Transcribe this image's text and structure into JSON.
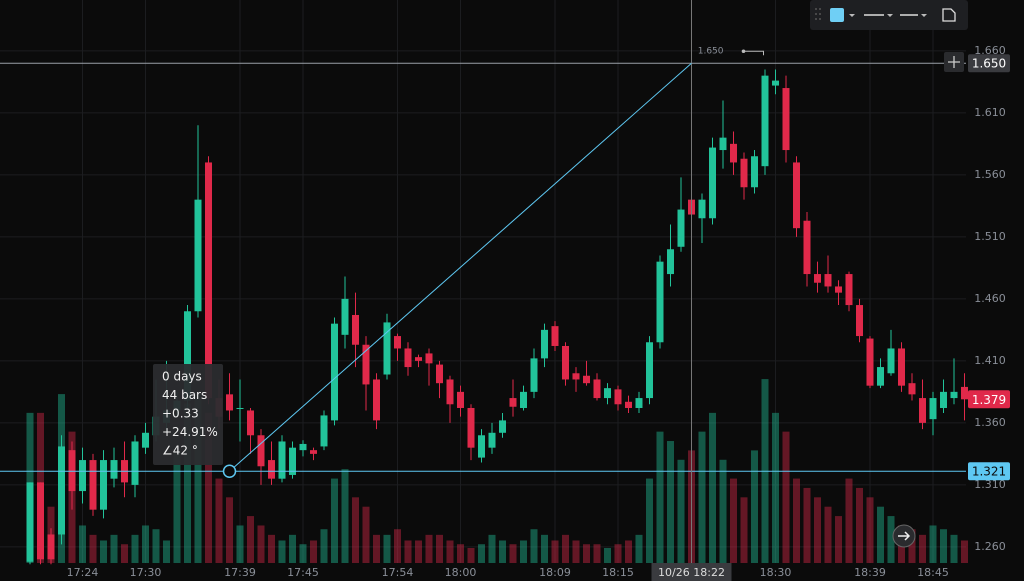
{
  "chart_data": {
    "type": "candlestick",
    "categories": [
      null,
      null,
      null,
      null,
      null,
      "17:24",
      null,
      null,
      null,
      null,
      null,
      "17:30",
      null,
      null,
      null,
      null,
      null,
      null,
      null,
      null,
      "17:39",
      null,
      null,
      null,
      null,
      null,
      "17:45",
      null,
      null,
      null,
      null,
      null,
      null,
      null,
      null,
      "17:54",
      null,
      null,
      null,
      null,
      null,
      "18:00",
      null,
      null,
      null,
      null,
      null,
      null,
      null,
      null,
      "18:09",
      null,
      null,
      null,
      null,
      null,
      "18:15",
      null,
      null,
      null,
      null,
      null,
      null,
      "10/26 18:22",
      null,
      null,
      null,
      null,
      null,
      null,
      null,
      "18:30",
      null,
      null,
      null,
      null,
      null,
      null,
      null,
      null,
      "18:39",
      null,
      null,
      null,
      null,
      null,
      "18:45",
      null,
      null,
      null
    ],
    "open": [
      1.248,
      1.312,
      1.27,
      1.27,
      1.338,
      1.305,
      1.33,
      1.29,
      1.315,
      1.33,
      1.31,
      1.34,
      1.35,
      1.36,
      1.37,
      1.378,
      1.45,
      1.57,
      1.38,
      1.383,
      1.372,
      1.37,
      1.35,
      1.33,
      1.315,
      1.318,
      1.338,
      1.338,
      1.341,
      1.362,
      1.431,
      1.447,
      1.423,
      1.395,
      1.399,
      1.43,
      1.42,
      1.413,
      1.416,
      1.407,
      1.395,
      1.385,
      1.372,
      1.332,
      1.34,
      1.352,
      1.38,
      1.372,
      1.385,
      1.412,
      1.438,
      1.422,
      1.4,
      1.398,
      1.395,
      1.38,
      1.387,
      1.377,
      1.372,
      1.38,
      1.425,
      1.48,
      1.502,
      1.54,
      1.525,
      1.525,
      1.58,
      1.585,
      1.573,
      1.55,
      1.567,
      1.632,
      1.63,
      1.57,
      1.523,
      1.48,
      1.48,
      1.47,
      1.48,
      1.455,
      1.428,
      1.39,
      1.4,
      1.42,
      1.392,
      1.38,
      1.363,
      1.372,
      1.38,
      1.389
    ],
    "high": [
      1.312,
      1.312,
      1.275,
      1.35,
      1.345,
      1.34,
      1.335,
      1.338,
      1.34,
      1.345,
      1.35,
      1.36,
      1.395,
      1.41,
      1.385,
      1.455,
      1.6,
      1.575,
      1.395,
      1.4,
      1.395,
      1.372,
      1.355,
      1.345,
      1.35,
      1.345,
      1.346,
      1.34,
      1.37,
      1.445,
      1.478,
      1.465,
      1.43,
      1.4,
      1.448,
      1.432,
      1.425,
      1.415,
      1.42,
      1.41,
      1.398,
      1.39,
      1.375,
      1.355,
      1.36,
      1.368,
      1.395,
      1.39,
      1.42,
      1.44,
      1.442,
      1.425,
      1.405,
      1.41,
      1.4,
      1.392,
      1.39,
      1.382,
      1.385,
      1.43,
      1.495,
      1.52,
      1.558,
      1.55,
      1.545,
      1.59,
      1.62,
      1.595,
      1.578,
      1.58,
      1.645,
      1.645,
      1.64,
      1.575,
      1.53,
      1.49,
      1.495,
      1.475,
      1.482,
      1.46,
      1.43,
      1.412,
      1.435,
      1.425,
      1.4,
      1.395,
      1.385,
      1.395,
      1.412,
      1.4
    ],
    "low": [
      1.246,
      1.246,
      1.246,
      1.262,
      1.29,
      1.295,
      1.285,
      1.283,
      1.308,
      1.3,
      1.3,
      1.335,
      1.345,
      1.352,
      1.365,
      1.372,
      1.445,
      1.375,
      1.355,
      1.362,
      1.345,
      1.335,
      1.31,
      1.31,
      1.312,
      1.315,
      1.333,
      1.33,
      1.338,
      1.358,
      1.42,
      1.405,
      1.37,
      1.355,
      1.395,
      1.41,
      1.398,
      1.405,
      1.39,
      1.38,
      1.36,
      1.365,
      1.33,
      1.328,
      1.335,
      1.348,
      1.365,
      1.37,
      1.38,
      1.405,
      1.418,
      1.39,
      1.385,
      1.39,
      1.378,
      1.375,
      1.37,
      1.368,
      1.368,
      1.375,
      1.42,
      1.47,
      1.498,
      1.52,
      1.505,
      1.52,
      1.565,
      1.56,
      1.54,
      1.545,
      1.56,
      1.625,
      1.57,
      1.51,
      1.47,
      1.465,
      1.465,
      1.455,
      1.45,
      1.425,
      1.388,
      1.388,
      1.398,
      1.385,
      1.378,
      1.355,
      1.35,
      1.368,
      1.375,
      1.362
    ],
    "close": [
      1.312,
      1.25,
      1.25,
      1.341,
      1.305,
      1.33,
      1.29,
      1.33,
      1.33,
      1.312,
      1.345,
      1.352,
      1.365,
      1.37,
      1.378,
      1.45,
      1.54,
      1.38,
      1.365,
      1.37,
      1.372,
      1.35,
      1.325,
      1.315,
      1.345,
      1.34,
      1.343,
      1.335,
      1.366,
      1.44,
      1.46,
      1.423,
      1.391,
      1.362,
      1.441,
      1.42,
      1.405,
      1.41,
      1.408,
      1.392,
      1.375,
      1.372,
      1.34,
      1.35,
      1.352,
      1.362,
      1.373,
      1.385,
      1.412,
      1.435,
      1.422,
      1.395,
      1.395,
      1.392,
      1.38,
      1.388,
      1.375,
      1.372,
      1.38,
      1.425,
      1.49,
      1.5,
      1.532,
      1.528,
      1.54,
      1.582,
      1.59,
      1.57,
      1.55,
      1.575,
      1.64,
      1.636,
      1.58,
      1.517,
      1.48,
      1.473,
      1.47,
      1.465,
      1.455,
      1.43,
      1.39,
      1.405,
      1.42,
      1.39,
      1.383,
      1.36,
      1.38,
      1.385,
      1.385,
      1.379
    ],
    "volume": [
      80,
      80,
      30,
      90,
      70,
      20,
      15,
      12,
      15,
      10,
      15,
      20,
      18,
      12,
      60,
      85,
      90,
      80,
      45,
      35,
      20,
      25,
      20,
      15,
      12,
      15,
      10,
      12,
      18,
      45,
      50,
      35,
      30,
      15,
      15,
      18,
      12,
      12,
      15,
      15,
      12,
      10,
      8,
      10,
      15,
      12,
      10,
      12,
      18,
      15,
      12,
      15,
      12,
      10,
      10,
      8,
      10,
      12,
      15,
      45,
      70,
      65,
      55,
      60,
      70,
      80,
      55,
      45,
      35,
      60,
      98,
      80,
      70,
      45,
      40,
      35,
      30,
      25,
      45,
      40,
      35,
      30,
      25,
      20,
      18,
      15,
      20,
      18,
      15,
      12
    ],
    "volume_ylim": [
      0,
      300
    ],
    "up_color": "#22c39a",
    "down_color": "#e0294a",
    "ylim": [
      1.247,
      1.701
    ],
    "yticks": [
      {
        "value": 1.26,
        "label": "1.260"
      },
      {
        "value": 1.31,
        "label": "1.310"
      },
      {
        "value": 1.36,
        "label": "1.360"
      },
      {
        "value": 1.41,
        "label": "1.410"
      },
      {
        "value": 1.46,
        "label": "1.460"
      },
      {
        "value": 1.51,
        "label": "1.510"
      },
      {
        "value": 1.56,
        "label": "1.560"
      },
      {
        "value": 1.61,
        "label": "1.610"
      },
      {
        "value": 1.66,
        "label": "1.660"
      }
    ],
    "grid": true,
    "horizontal_lines": [
      {
        "value": 1.65,
        "label": "1.650",
        "color": "#9aa0a8"
      },
      {
        "value": 1.321,
        "label": "1.321",
        "color": "#5ec8f2"
      }
    ],
    "last_price": {
      "value": 1.379,
      "label": "1.379"
    },
    "trend_line": {
      "start": 1.321,
      "end": 1.65,
      "color": "#5ec8f2"
    },
    "tooltip": [
      "0 days",
      "44 bars",
      "+0.33",
      "+24.91%",
      "∠42 °"
    ]
  }
}
